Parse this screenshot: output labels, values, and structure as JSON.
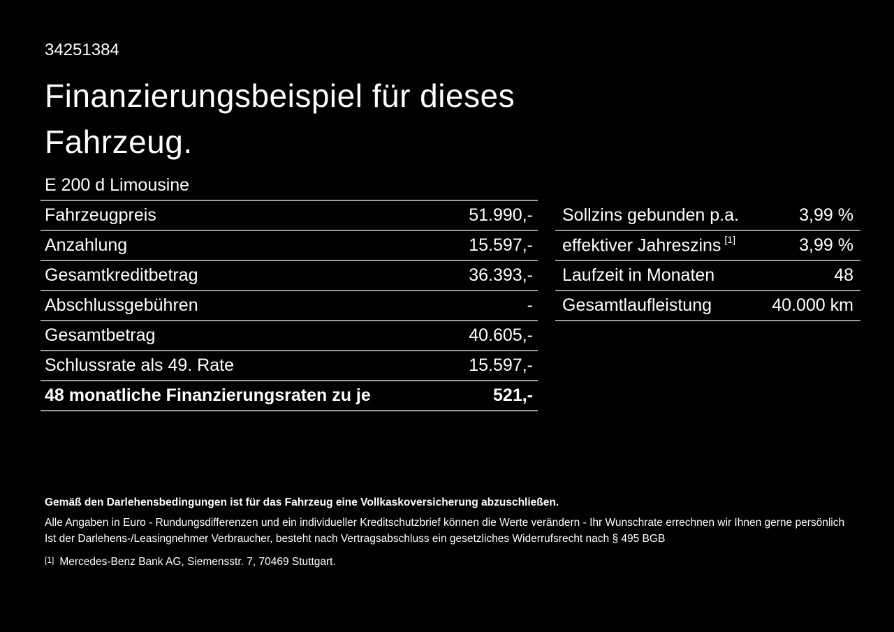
{
  "page": {
    "background_color": "#000000",
    "text_color": "#ffffff",
    "separator_color": "#9b9b9b"
  },
  "header": {
    "doc_id": "34251384",
    "title_line1": "Finanzierungsbeispiel für dieses",
    "title_line2": "Fahrzeug."
  },
  "vehicle": {
    "model": "E 200 d Limousine"
  },
  "finance_table": {
    "rows": [
      {
        "label": "Fahrzeugpreis",
        "value": "51.990,-"
      },
      {
        "label": "Anzahlung",
        "value": "15.597,-"
      },
      {
        "label": "Gesamtkreditbetrag",
        "value": "36.393,-"
      },
      {
        "label": "Abschlussgebühren",
        "value": "-"
      },
      {
        "label": "Gesamtbetrag",
        "value": "40.605,-"
      },
      {
        "label": "Schlussrate als 49. Rate",
        "value": "15.597,-"
      },
      {
        "label": "48 monatliche Finanzierungsraten zu je",
        "value": "521,-"
      }
    ]
  },
  "conditions_table": {
    "rows": [
      {
        "label": "Sollzins gebunden p.a.",
        "sup": "",
        "value": "3,99 %"
      },
      {
        "label": "effektiver Jahreszins",
        "sup": "[1]",
        "value": "3,99 %"
      },
      {
        "label": "Laufzeit in Monaten",
        "sup": "",
        "value": "48"
      },
      {
        "label": "Gesamtlaufleistung",
        "sup": "",
        "value": "40.000 km"
      }
    ]
  },
  "footer": {
    "notice_bold": "Gemäß den Darlehensbedingungen ist für das Fahrzeug eine Vollkaskoversicherung abzuschließen.",
    "line1": "Alle Angaben in Euro - Rundungsdifferenzen und ein individueller Kreditschutzbrief können die Werte verändern - Ihr Wunschrate errechnen wir Ihnen gerne persönlich",
    "line2": "Ist der Darlehens-/Leasingnehmer Verbraucher, besteht nach Vertragsabschluss ein gesetzliches Widerrufsrecht nach § 495 BGB",
    "footnote_marker": "[1]",
    "footnote_text": "Mercedes-Benz Bank AG, Siemensstr. 7, 70469 Stuttgart."
  }
}
